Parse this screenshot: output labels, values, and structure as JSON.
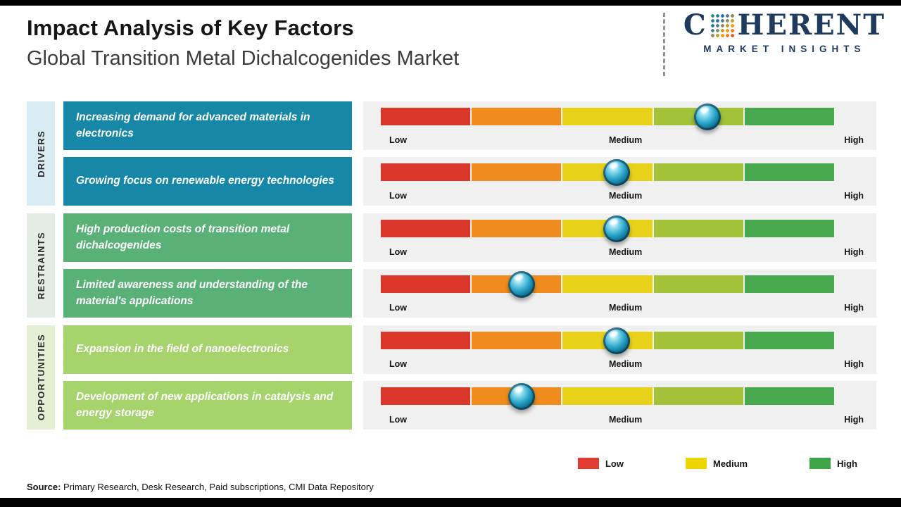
{
  "header": {
    "title": "Impact Analysis of Key Factors",
    "subtitle": "Global Transition Metal Dichalcogenides Market"
  },
  "logo": {
    "name_prefix": "C",
    "name_suffix": "HERENT",
    "tagline": "MARKET INSIGHTS",
    "text_color": "#1e3a5e",
    "mosaic_colors": [
      "#2f9e44",
      "#1e6fb8",
      "#f59f00",
      "#e03131"
    ]
  },
  "groups": [
    {
      "label": "DRIVERS",
      "bg": "#d9ebf3",
      "box_color": "#1787a8"
    },
    {
      "label": "RESTRAINTS",
      "bg": "#e3ece5",
      "box_color": "#59b178"
    },
    {
      "label": "OPPORTUNITIES",
      "bg": "#e4f0d3",
      "box_color": "#a6d36c"
    }
  ],
  "bar": {
    "track_bg": "#f0f0f0",
    "segment_colors": [
      "#da372b",
      "#f08c1e",
      "#e8d219",
      "#a2c23a",
      "#47a84d"
    ]
  },
  "scale": {
    "low": "Low",
    "medium": "Medium",
    "high": "High"
  },
  "legend": [
    {
      "label": "Low",
      "color": "#e03c31"
    },
    {
      "label": "Medium",
      "color": "#efd500"
    },
    {
      "label": "High",
      "color": "#3fa347"
    }
  ],
  "source": {
    "prefix": "Source:",
    "text": " Primary Research, Desk Research, Paid subscriptions, CMI Data Repository"
  },
  "chart_data": {
    "type": "table",
    "title": "Impact Analysis of Key Factors",
    "subtitle": "Global Transition Metal Dichalcogenides Market",
    "scale_labels": [
      "Low",
      "Medium",
      "High"
    ],
    "rows": [
      {
        "category": "DRIVERS",
        "factor": "Increasing demand for advanced materials in electronics",
        "impact_pct": 72,
        "impact_left": "72%",
        "impact_level": "Medium-High"
      },
      {
        "category": "DRIVERS",
        "factor": "Growing focus on renewable energy technologies",
        "impact_pct": 52,
        "impact_left": "52%",
        "impact_level": "Medium"
      },
      {
        "category": "RESTRAINTS",
        "factor": "High production costs of transition metal dichalcogenides",
        "impact_pct": 52,
        "impact_left": "52%",
        "impact_level": "Medium"
      },
      {
        "category": "RESTRAINTS",
        "factor": "Limited awareness and understanding of the material's applications",
        "impact_pct": 31,
        "impact_left": "31%",
        "impact_level": "Low-Medium"
      },
      {
        "category": "OPPORTUNITIES",
        "factor": "Expansion in the field of nanoelectronics",
        "impact_pct": 52,
        "impact_left": "52%",
        "impact_level": "Medium"
      },
      {
        "category": "OPPORTUNITIES",
        "factor": "Development of new applications in catalysis and energy storage",
        "impact_pct": 31,
        "impact_left": "31%",
        "impact_level": "Low-Medium"
      }
    ]
  }
}
